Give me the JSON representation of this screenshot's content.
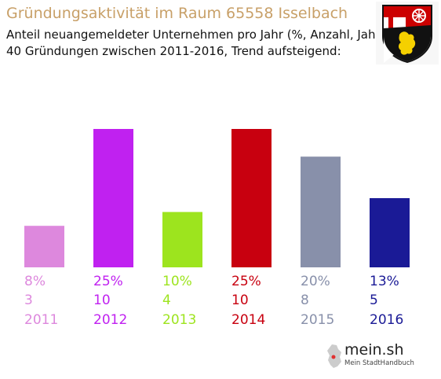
{
  "header": {
    "title": "Gründungsaktivität im Raum 65558 Isselbach",
    "subtitle_line1": "Anteil neuangemeldeter Unternehmen pro Jahr (%, Anzahl, Jahr)",
    "subtitle_line2": "40 Gründungen zwischen 2011-2016, Trend aufsteigend:"
  },
  "logo": {
    "name": "mein.sh",
    "tagline": "Mein StadtHandbuch"
  },
  "chart_data": {
    "type": "bar",
    "title": "Gründungsaktivität im Raum 65558 Isselbach",
    "categories": [
      "2011",
      "2012",
      "2013",
      "2014",
      "2015",
      "2016"
    ],
    "values": [
      3,
      10,
      4,
      10,
      8,
      5
    ],
    "percent_labels": [
      "8%",
      "25%",
      "10%",
      "25%",
      "20%",
      "13%"
    ],
    "count_labels": [
      "3",
      "10",
      "4",
      "10",
      "8",
      "5"
    ],
    "colors": [
      "#dd88dd",
      "#c021f0",
      "#9de41e",
      "#c8000f",
      "#8890aa",
      "#1a1a96"
    ],
    "ylim": [
      0,
      10
    ],
    "grid": false,
    "legend": "none"
  }
}
